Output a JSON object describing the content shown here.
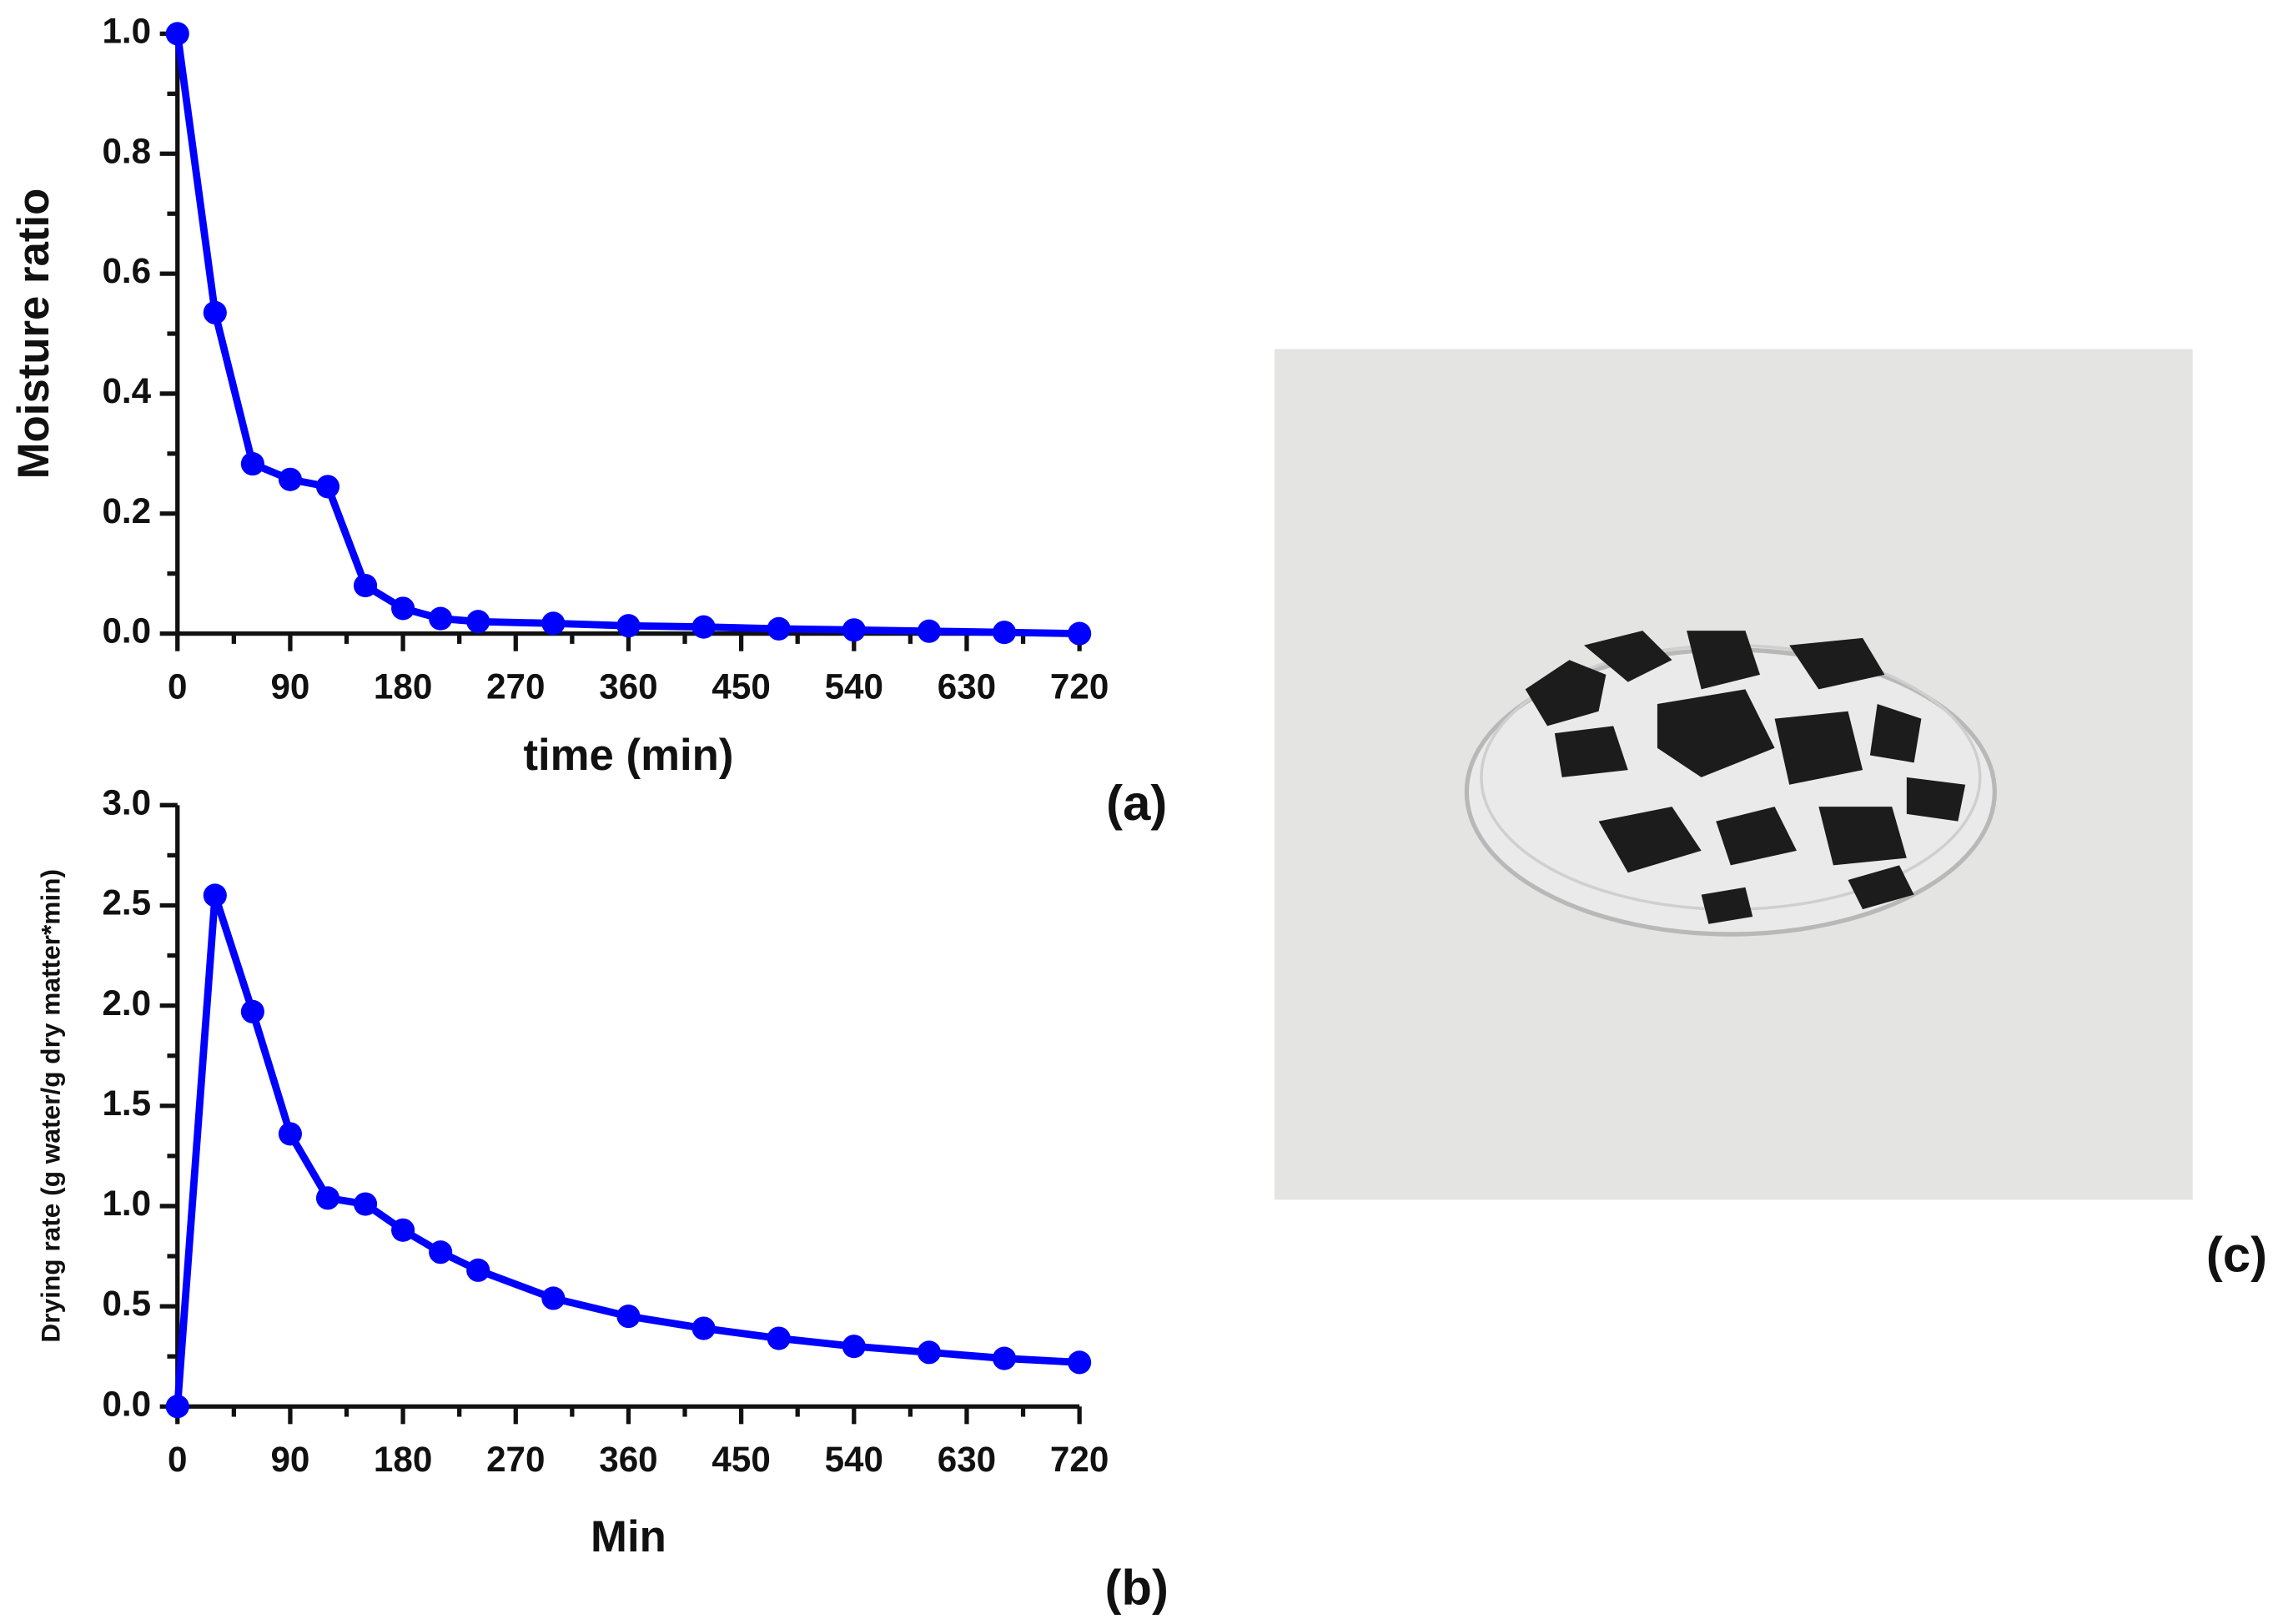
{
  "chart_data": [
    {
      "type": "line",
      "annotation": "(a)",
      "y_label": "Moisture ratio",
      "x_label": "time (min)",
      "x": [
        0,
        30,
        60,
        90,
        120,
        150,
        180,
        210,
        240,
        300,
        360,
        420,
        480,
        540,
        600,
        660,
        720
      ],
      "series": [
        {
          "color": "#0000ff",
          "values": [
            1.0,
            0.535,
            0.283,
            0.257,
            0.245,
            0.08,
            0.042,
            0.025,
            0.02,
            0.017,
            0.013,
            0.011,
            0.008,
            0.006,
            0.004,
            0.002,
            0.0
          ]
        }
      ],
      "xlim": [
        0,
        720
      ],
      "xticks": [
        0,
        90,
        180,
        270,
        360,
        450,
        540,
        630,
        720
      ],
      "ylim": [
        0,
        1.0
      ],
      "yticks": [
        {
          "value": 0,
          "label": "0.0"
        },
        {
          "value": 0.2,
          "label": "0.2"
        },
        {
          "value": 0.4,
          "label": "0.4"
        },
        {
          "value": 0.6,
          "label": "0.6"
        },
        {
          "value": 0.8,
          "label": "0.8"
        },
        {
          "value": 1.0,
          "label": "1.0"
        }
      ]
    },
    {
      "type": "line",
      "annotation": "(b)",
      "y_label": "Drying rate (g water/g dry matter*min)",
      "x_label": "Min",
      "x": [
        0,
        30,
        60,
        90,
        120,
        150,
        180,
        210,
        240,
        300,
        360,
        420,
        480,
        540,
        600,
        660,
        720
      ],
      "series": [
        {
          "color": "#0000ff",
          "values": [
            0,
            2.55,
            1.97,
            1.36,
            1.04,
            1.01,
            0.88,
            0.77,
            0.68,
            0.54,
            0.45,
            0.39,
            0.34,
            0.3,
            0.27,
            0.24,
            0.22
          ]
        }
      ],
      "xlim": [
        0,
        720
      ],
      "xticks": [
        0,
        90,
        180,
        270,
        360,
        450,
        540,
        630,
        720
      ],
      "ylim": [
        0,
        3.0
      ],
      "yticks": [
        {
          "value": 0,
          "label": "0.0"
        },
        {
          "value": 0.5,
          "label": "0.5"
        },
        {
          "value": 1.0,
          "label": "1.0"
        },
        {
          "value": 1.5,
          "label": "1.5"
        },
        {
          "value": 2.0,
          "label": "2.0"
        },
        {
          "value": 2.5,
          "label": "2.5"
        },
        {
          "value": 3.0,
          "label": "3.0"
        }
      ]
    }
  ],
  "photo": {
    "label": "(c)"
  }
}
